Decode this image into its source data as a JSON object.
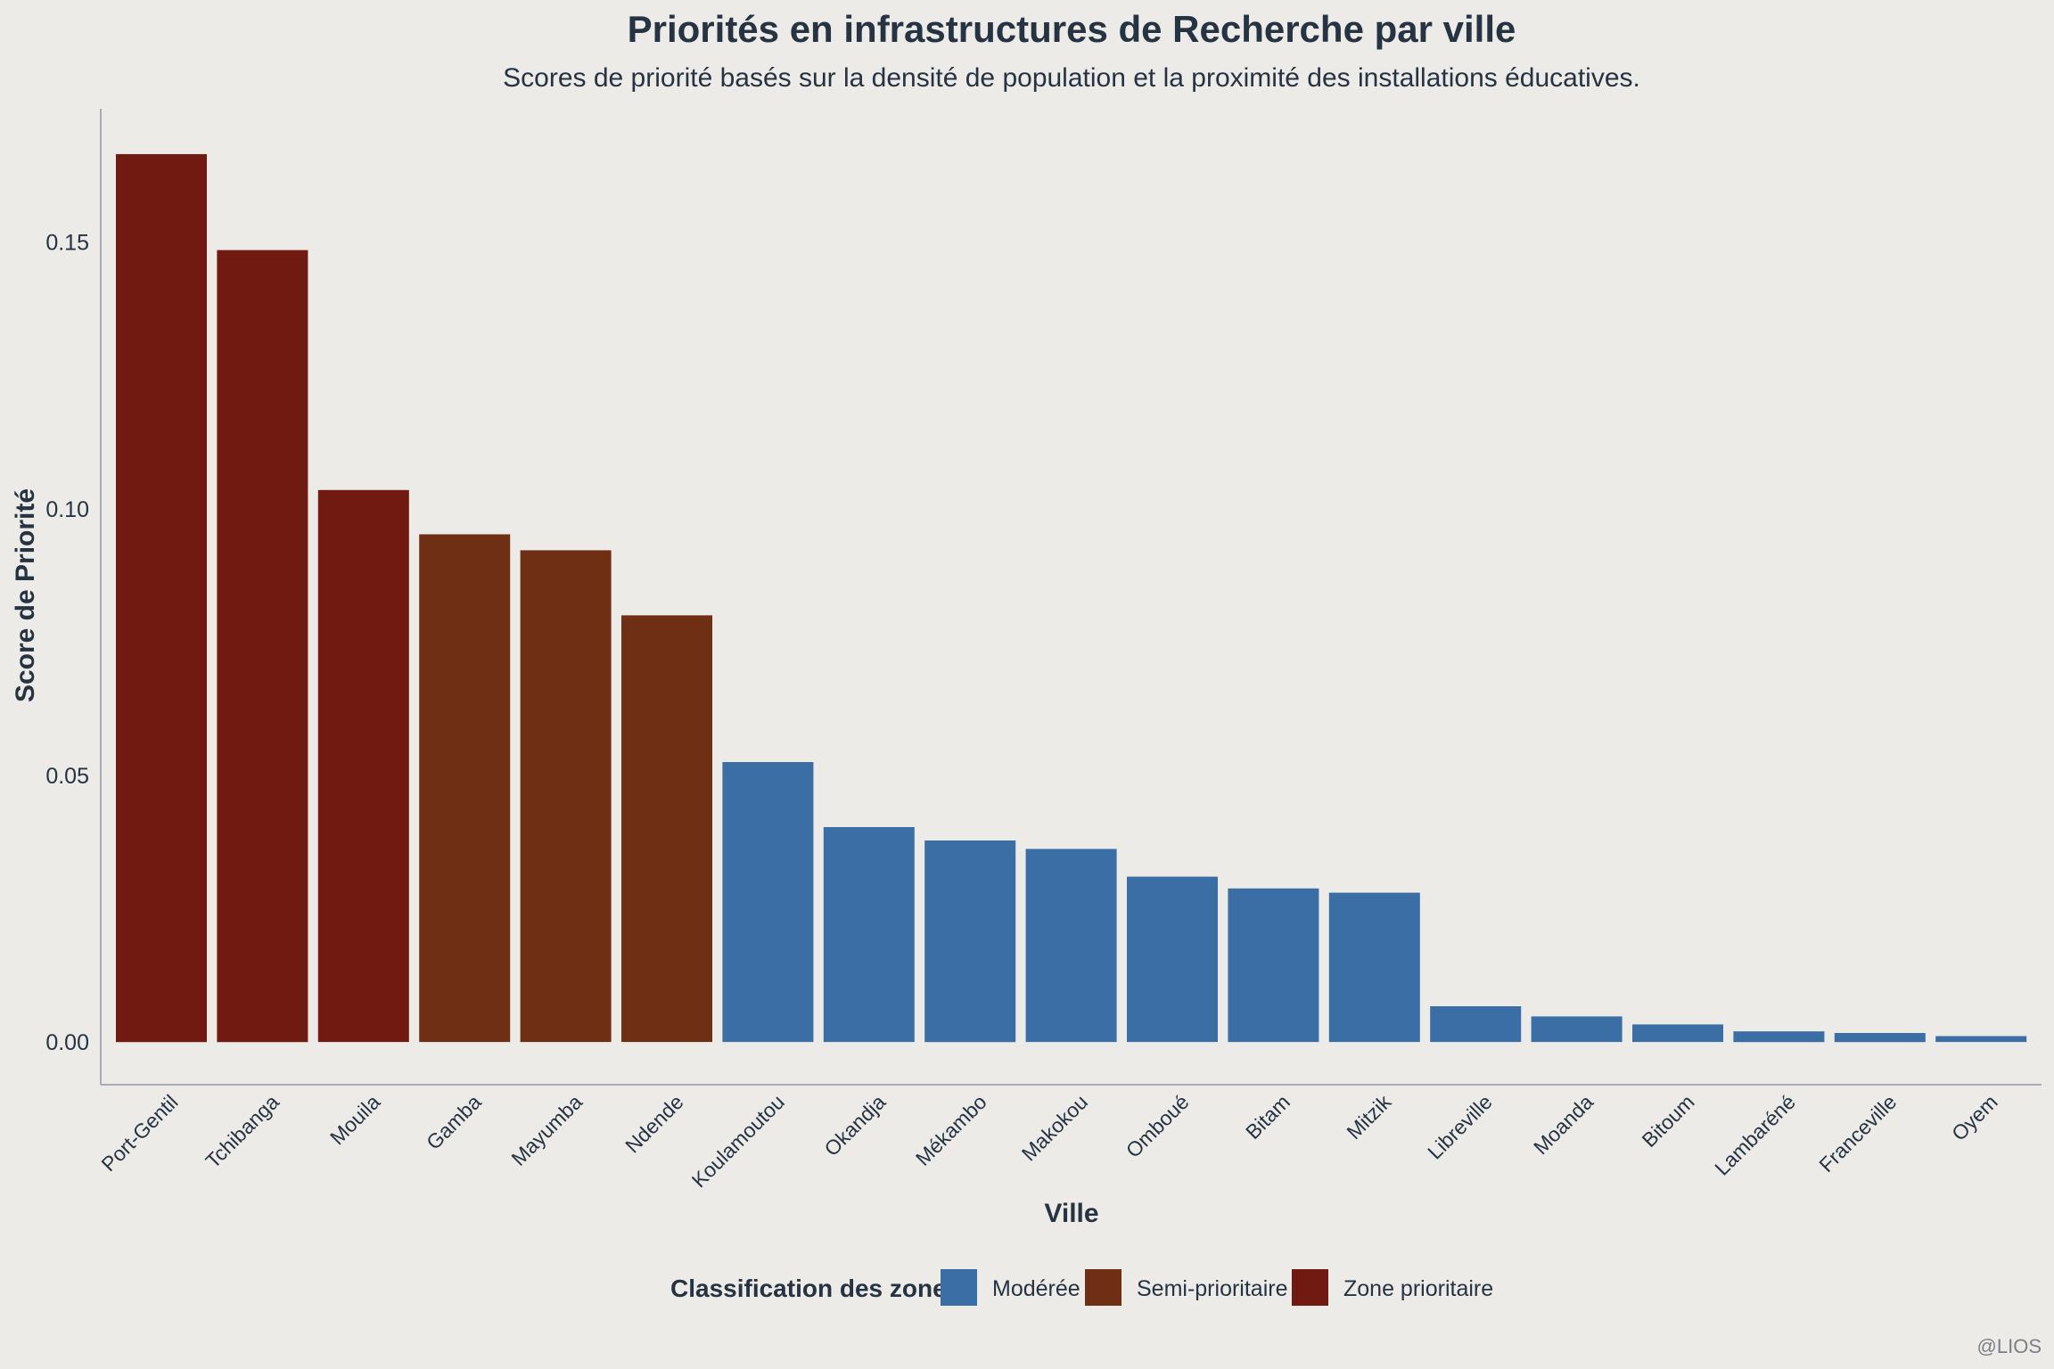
{
  "chart_data": {
    "type": "bar",
    "title": "Priorités en infrastructures de Recherche par ville",
    "subtitle": "Scores de priorité basés sur la densité de population et la proximité des installations éducatives.",
    "xlabel": "Ville",
    "ylabel": "Score de Priorité",
    "ylim": [
      -0.008,
      0.175
    ],
    "yticks": [
      "0.00",
      "0.05",
      "0.10",
      "0.15"
    ],
    "ytick_values": [
      0,
      0.05,
      0.1,
      0.15
    ],
    "categories": [
      "Port-Gentil",
      "Tchibanga",
      "Mouila",
      "Gamba",
      "Mayumba",
      "Ndende",
      "Koulamoutou",
      "Okandja",
      "Mékambo",
      "Makokou",
      "Omboué",
      "Bitam",
      "Mitzik",
      "Libreville",
      "Moanda",
      "Bitoum",
      "Lambaréné",
      "Franceville",
      "Oyem"
    ],
    "values": [
      0.1665,
      0.1485,
      0.1035,
      0.0952,
      0.0922,
      0.08,
      0.0525,
      0.0403,
      0.0378,
      0.0362,
      0.031,
      0.0288,
      0.028,
      0.0067,
      0.0048,
      0.0033,
      0.002,
      0.0017,
      0.0011
    ],
    "zones": [
      "Zone prioritaire",
      "Zone prioritaire",
      "Zone prioritaire",
      "Semi-prioritaire",
      "Semi-prioritaire",
      "Semi-prioritaire",
      "Modérée",
      "Modérée",
      "Modérée",
      "Modérée",
      "Modérée",
      "Modérée",
      "Modérée",
      "Modérée",
      "Modérée",
      "Modérée",
      "Modérée",
      "Modérée",
      "Modérée"
    ],
    "legend": {
      "title": "Classification des zones",
      "position": "bottom",
      "items": [
        {
          "label": "Modérée",
          "color": "#3a6ea5"
        },
        {
          "label": "Semi-prioritaire",
          "color": "#6e2f14"
        },
        {
          "label": "Zone prioritaire",
          "color": "#701a12"
        }
      ]
    },
    "grid": false,
    "caption": "@LIOS"
  },
  "colors": {
    "background": "#ecebe7",
    "text": "#263343",
    "axis": "#a9adb2"
  }
}
